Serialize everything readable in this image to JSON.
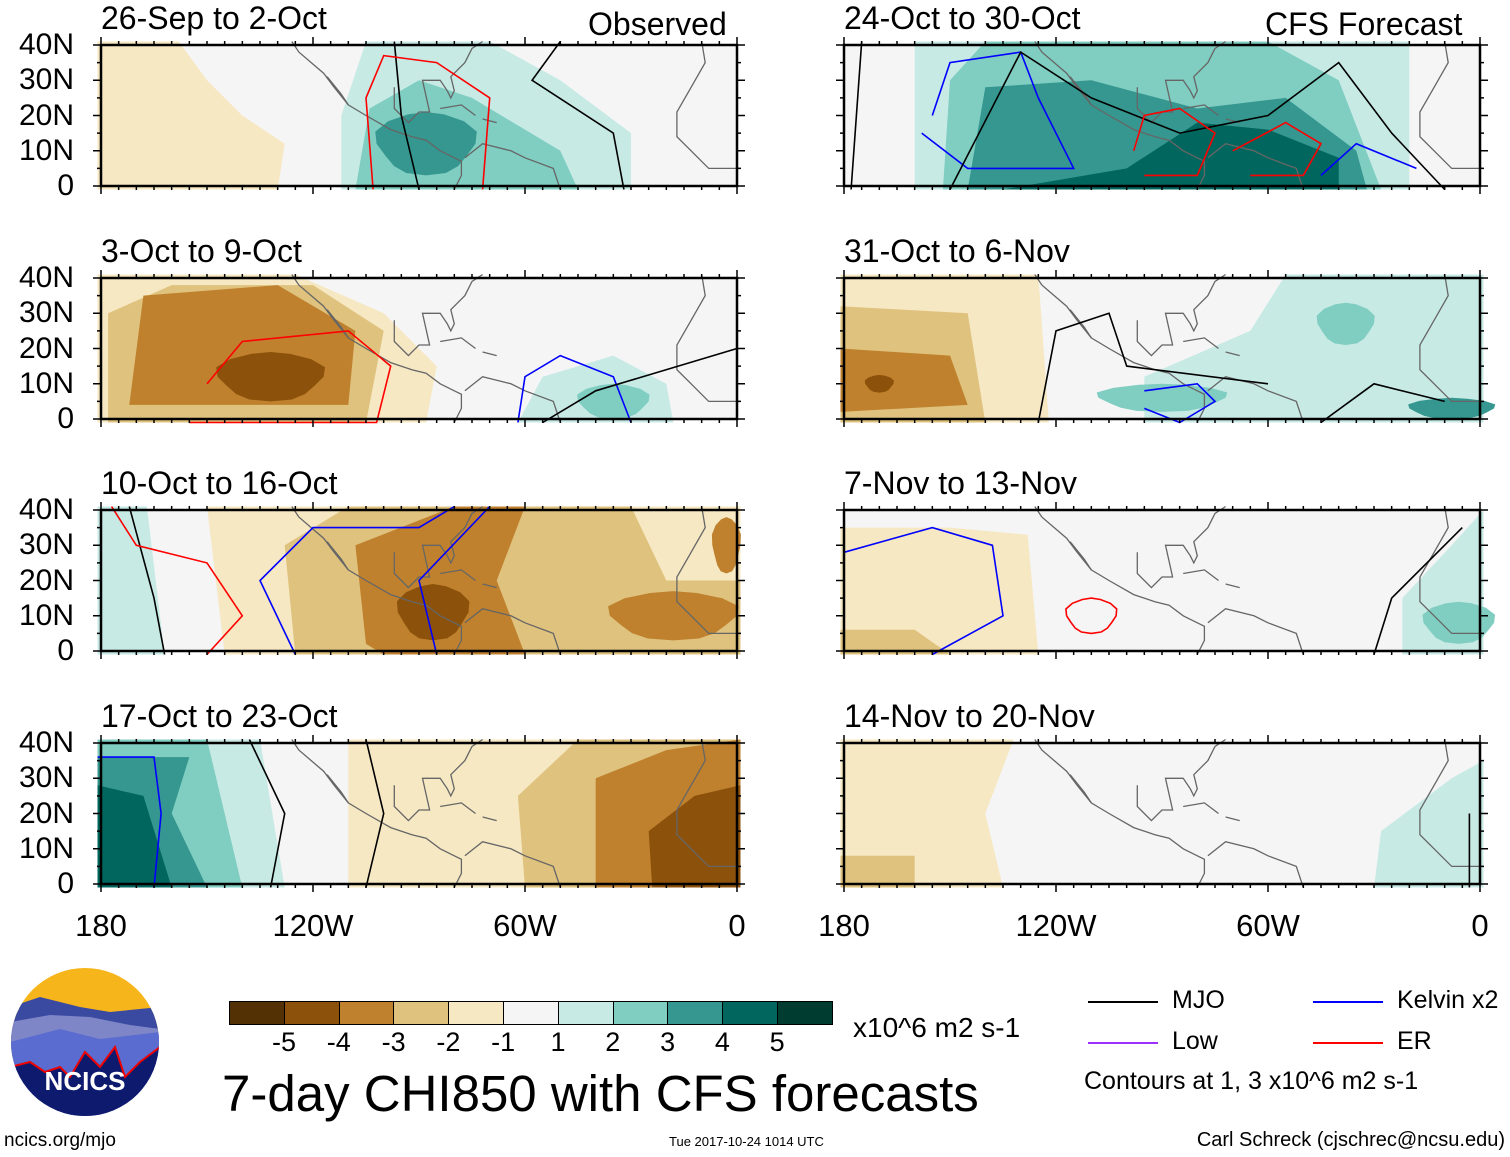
{
  "header": {
    "observed": "Observed",
    "forecast": "CFS Forecast"
  },
  "panels": [
    {
      "title": "26-Sep to 2-Oct",
      "column": "observed"
    },
    {
      "title": "3-Oct to 9-Oct",
      "column": "observed"
    },
    {
      "title": "10-Oct to 16-Oct",
      "column": "observed"
    },
    {
      "title": "17-Oct to 23-Oct",
      "column": "observed"
    },
    {
      "title": "24-Oct to 30-Oct",
      "column": "forecast"
    },
    {
      "title": "31-Oct to 6-Nov",
      "column": "forecast"
    },
    {
      "title": "7-Nov to 13-Nov",
      "column": "forecast"
    },
    {
      "title": "14-Nov to 20-Nov",
      "column": "forecast"
    }
  ],
  "y_ticks": [
    "40N",
    "30N",
    "20N",
    "10N",
    "0"
  ],
  "x_ticks": [
    "180",
    "120W",
    "60W",
    "0"
  ],
  "colorbar": {
    "colors": [
      "#543005",
      "#8c510a",
      "#bf812d",
      "#dfc27d",
      "#f6e8c3",
      "#f5f5f5",
      "#c7eae5",
      "#80cdc1",
      "#35978f",
      "#01665e",
      "#003c30"
    ],
    "labels": [
      "-5",
      "-4",
      "-3",
      "-2",
      "-1",
      "1",
      "2",
      "3",
      "4",
      "5"
    ],
    "units": "x10^6 m2 s-1"
  },
  "legend": {
    "items": [
      {
        "label": "MJO",
        "color": "#000000"
      },
      {
        "label": "Low",
        "color": "#9b30ff"
      },
      {
        "label": "Kelvin x2",
        "color": "#0000ff"
      },
      {
        "label": "ER",
        "color": "#ff0000"
      }
    ],
    "contour_note": "Contours at 1, 3 x10^6 m2 s-1"
  },
  "title": "7-day CHI850 with CFS forecasts",
  "logo": {
    "text": "NCICS"
  },
  "footer": {
    "url": "ncics.org/mjo",
    "timestamp": "Tue 2017-10-24 1014 UTC",
    "credit": "Carl Schreck (cjschrec@ncsu.edu)"
  },
  "chart_data": {
    "type": "heatmap",
    "title": "7-day CHI850 with CFS forecasts",
    "units": "x10^6 m2 s-1",
    "levels": [
      -5,
      -4,
      -3,
      -2,
      -1,
      1,
      2,
      3,
      4,
      5
    ],
    "xlim": [
      "180",
      "0"
    ],
    "ylim": [
      "0",
      "40N"
    ],
    "panels": [
      "26-Sep to 2-Oct",
      "3-Oct to 9-Oct",
      "10-Oct to 16-Oct",
      "17-Oct to 23-Oct",
      "24-Oct to 30-Oct",
      "31-Oct to 6-Nov",
      "7-Nov to 13-Nov",
      "14-Nov to 20-Nov"
    ],
    "contours": [
      "MJO",
      "Low",
      "Kelvin x2",
      "ER"
    ]
  }
}
